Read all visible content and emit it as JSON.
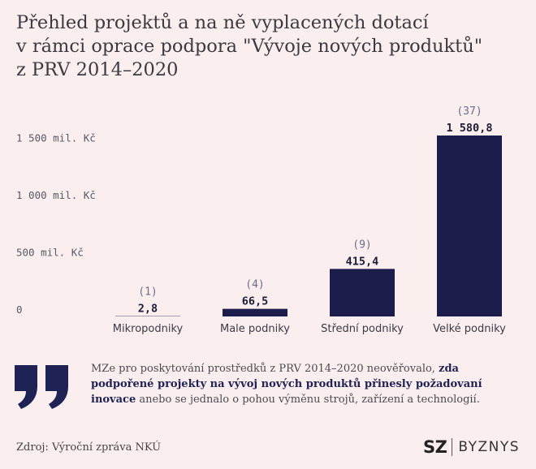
{
  "title_lines": [
    "Přehled projektů a na ně vyplacených dotací",
    "v rámci oprace podpora \"Vývoje nových produktů\"",
    "z PRV 2014–2020"
  ],
  "chart_data": {
    "type": "bar",
    "categories": [
      "Mikropodniky",
      "Male podniky",
      "Střední podniky",
      "Velké podniky"
    ],
    "values": [
      2.8,
      66.5,
      415.4,
      1580.8
    ],
    "value_labels": [
      "2,8",
      "66,5",
      "415,4",
      "1 580,8"
    ],
    "count_labels": [
      "(1)",
      "(4)",
      "(9)",
      "(37)"
    ],
    "ylim": [
      0,
      1580.8
    ],
    "yticks": [
      0,
      500,
      1000,
      1500
    ],
    "ytick_labels": [
      "0",
      "500 mil. Kč",
      "1 000 mil. Kč",
      "1 500 mil. Kč"
    ],
    "bar_color": "#1c1d4d",
    "grid": false
  },
  "quote": {
    "text_before": "MZe pro poskytování prostředků z PRV 2014–2020 neověřovalo, ",
    "text_bold": "zda podpořené projekty na vývoj nových  produktů přinesly požadovaní inovace",
    "text_after": " anebo se jednalo o pohou výměnu strojů, zařízení a technologií.",
    "icon": "quote-icon",
    "accent": "#1f2255"
  },
  "source": "Zdroj: Výroční zpráva NKÚ",
  "brand": {
    "left": "SZ",
    "right": "BYZNYS"
  },
  "background": "#fbeeee"
}
